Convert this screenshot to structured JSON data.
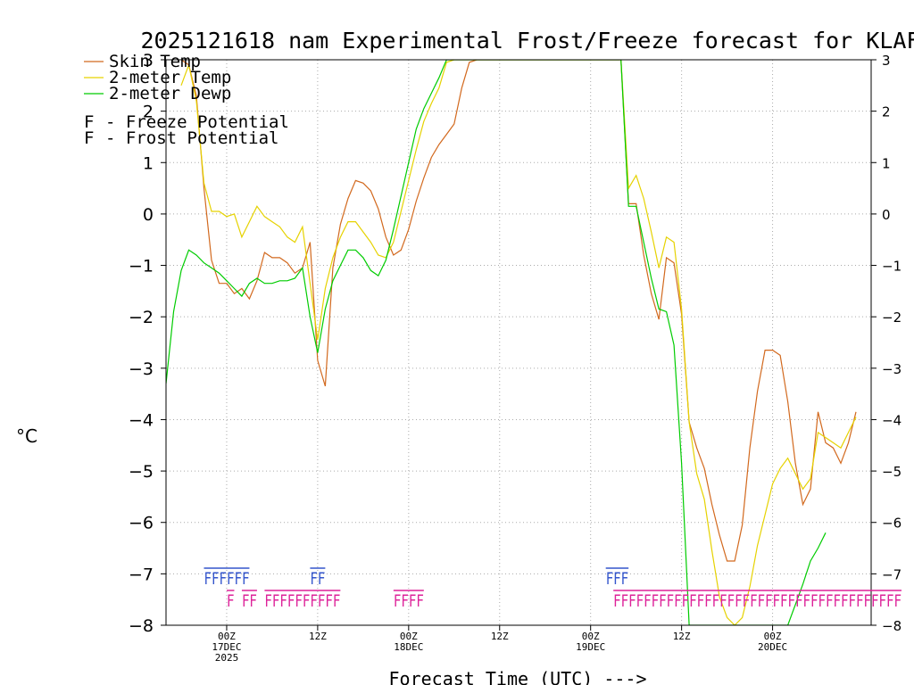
{
  "chart_data": {
    "type": "line",
    "title": "2025121618 nam Experimental Frost/Freeze forecast for KLAF",
    "ylabel": "°C",
    "xlabel": "Forecast Time (UTC) --->",
    "ylim": [
      -8,
      3
    ],
    "xlim_hours": [
      -8,
      85
    ],
    "y_ticks": [
      3,
      2,
      1,
      0,
      -1,
      -2,
      -3,
      -4,
      -5,
      -6,
      -7,
      -8
    ],
    "x_ticks": [
      {
        "hour": 0,
        "labels": [
          "00Z",
          "17DEC",
          "2025"
        ]
      },
      {
        "hour": 12,
        "labels": [
          "12Z"
        ]
      },
      {
        "hour": 24,
        "labels": [
          "00Z",
          "18DEC"
        ]
      },
      {
        "hour": 36,
        "labels": [
          "12Z"
        ]
      },
      {
        "hour": 48,
        "labels": [
          "00Z",
          "19DEC"
        ]
      },
      {
        "hour": 60,
        "labels": [
          "12Z"
        ]
      },
      {
        "hour": 72,
        "labels": [
          "00Z",
          "20DEC"
        ]
      }
    ],
    "grid": true,
    "legend_position": "top-left",
    "series": [
      {
        "name": "Skin Temp",
        "color": "#d2691e",
        "points": [
          [
            -6,
            3.0
          ],
          [
            -5,
            2.9
          ],
          [
            -4,
            2.3
          ],
          [
            -3,
            0.5
          ],
          [
            -2,
            -0.9
          ],
          [
            -1,
            -1.35
          ],
          [
            0,
            -1.35
          ],
          [
            1,
            -1.55
          ],
          [
            2,
            -1.45
          ],
          [
            3,
            -1.65
          ],
          [
            4,
            -1.3
          ],
          [
            5,
            -0.75
          ],
          [
            6,
            -0.85
          ],
          [
            7,
            -0.85
          ],
          [
            8,
            -0.95
          ],
          [
            9,
            -1.15
          ],
          [
            10,
            -1.05
          ],
          [
            11,
            -0.55
          ],
          [
            12,
            -2.85
          ],
          [
            13,
            -3.35
          ],
          [
            14,
            -1.05
          ],
          [
            15,
            -0.2
          ],
          [
            16,
            0.3
          ],
          [
            17,
            0.65
          ],
          [
            18,
            0.6
          ],
          [
            19,
            0.45
          ],
          [
            20,
            0.1
          ],
          [
            21,
            -0.45
          ],
          [
            22,
            -0.8
          ],
          [
            23,
            -0.7
          ],
          [
            24,
            -0.3
          ],
          [
            25,
            0.25
          ],
          [
            26,
            0.7
          ],
          [
            27,
            1.1
          ],
          [
            28,
            1.35
          ],
          [
            29,
            1.55
          ],
          [
            30,
            1.75
          ],
          [
            31,
            2.45
          ],
          [
            32,
            2.95
          ],
          [
            33,
            3.0
          ],
          [
            52,
            3.0
          ],
          [
            53,
            0.2
          ],
          [
            54,
            0.2
          ],
          [
            55,
            -0.8
          ],
          [
            56,
            -1.55
          ],
          [
            57,
            -2.05
          ],
          [
            58,
            -0.85
          ],
          [
            59,
            -0.95
          ],
          [
            60,
            -1.95
          ],
          [
            61,
            -4.05
          ],
          [
            62,
            -4.55
          ],
          [
            63,
            -4.95
          ],
          [
            64,
            -5.65
          ],
          [
            65,
            -6.25
          ],
          [
            66,
            -6.75
          ],
          [
            67,
            -6.75
          ],
          [
            68,
            -6.05
          ],
          [
            69,
            -4.55
          ],
          [
            70,
            -3.45
          ],
          [
            71,
            -2.65
          ],
          [
            72,
            -2.65
          ],
          [
            73,
            -2.75
          ],
          [
            74,
            -3.65
          ],
          [
            75,
            -4.85
          ],
          [
            76,
            -5.65
          ],
          [
            77,
            -5.35
          ],
          [
            78,
            -3.85
          ],
          [
            79,
            -4.45
          ],
          [
            80,
            -4.55
          ],
          [
            81,
            -4.85
          ],
          [
            82,
            -4.45
          ],
          [
            83,
            -3.85
          ]
        ]
      },
      {
        "name": "2-meter Temp",
        "color": "#e6d200",
        "points": [
          [
            -6,
            2.5
          ],
          [
            -5,
            2.9
          ],
          [
            -4,
            2.2
          ],
          [
            -3,
            0.6
          ],
          [
            -2,
            0.05
          ],
          [
            -1,
            0.05
          ],
          [
            0,
            -0.05
          ],
          [
            1,
            0.0
          ],
          [
            2,
            -0.45
          ],
          [
            3,
            -0.15
          ],
          [
            4,
            0.15
          ],
          [
            5,
            -0.05
          ],
          [
            6,
            -0.15
          ],
          [
            7,
            -0.25
          ],
          [
            8,
            -0.45
          ],
          [
            9,
            -0.55
          ],
          [
            10,
            -0.25
          ],
          [
            11,
            -1.35
          ],
          [
            12,
            -2.45
          ],
          [
            13,
            -1.45
          ],
          [
            14,
            -0.85
          ],
          [
            15,
            -0.45
          ],
          [
            16,
            -0.15
          ],
          [
            17,
            -0.15
          ],
          [
            18,
            -0.35
          ],
          [
            19,
            -0.55
          ],
          [
            20,
            -0.8
          ],
          [
            21,
            -0.85
          ],
          [
            22,
            -0.55
          ],
          [
            23,
            0.05
          ],
          [
            24,
            0.65
          ],
          [
            25,
            1.25
          ],
          [
            26,
            1.8
          ],
          [
            27,
            2.15
          ],
          [
            28,
            2.45
          ],
          [
            29,
            2.95
          ],
          [
            30,
            3.0
          ],
          [
            52,
            3.0
          ],
          [
            53,
            0.5
          ],
          [
            54,
            0.75
          ],
          [
            55,
            0.3
          ],
          [
            56,
            -0.35
          ],
          [
            57,
            -1.05
          ],
          [
            58,
            -0.45
          ],
          [
            59,
            -0.55
          ],
          [
            60,
            -1.85
          ],
          [
            61,
            -4.05
          ],
          [
            62,
            -5.05
          ],
          [
            63,
            -5.55
          ],
          [
            64,
            -6.55
          ],
          [
            65,
            -7.45
          ],
          [
            66,
            -7.85
          ],
          [
            67,
            -8.05
          ],
          [
            68,
            -7.85
          ],
          [
            69,
            -7.25
          ],
          [
            70,
            -6.45
          ],
          [
            71,
            -5.85
          ],
          [
            72,
            -5.25
          ],
          [
            73,
            -4.95
          ],
          [
            74,
            -4.75
          ],
          [
            75,
            -5.05
          ],
          [
            76,
            -5.35
          ],
          [
            77,
            -5.15
          ],
          [
            78,
            -4.25
          ],
          [
            79,
            -4.35
          ],
          [
            80,
            -4.45
          ],
          [
            81,
            -4.55
          ],
          [
            82,
            -4.25
          ],
          [
            83,
            -3.95
          ]
        ]
      },
      {
        "name": "2-meter Dewp",
        "color": "#00cc00",
        "points": [
          [
            -8,
            -3.3
          ],
          [
            -7,
            -1.9
          ],
          [
            -6,
            -1.1
          ],
          [
            -5,
            -0.7
          ],
          [
            -4,
            -0.8
          ],
          [
            -3,
            -0.95
          ],
          [
            -2,
            -1.05
          ],
          [
            -1,
            -1.15
          ],
          [
            0,
            -1.3
          ],
          [
            1,
            -1.45
          ],
          [
            2,
            -1.6
          ],
          [
            3,
            -1.35
          ],
          [
            4,
            -1.25
          ],
          [
            5,
            -1.35
          ],
          [
            6,
            -1.35
          ],
          [
            7,
            -1.3
          ],
          [
            8,
            -1.3
          ],
          [
            9,
            -1.25
          ],
          [
            10,
            -1.05
          ],
          [
            11,
            -2.0
          ],
          [
            12,
            -2.7
          ],
          [
            13,
            -1.85
          ],
          [
            14,
            -1.3
          ],
          [
            15,
            -1.0
          ],
          [
            16,
            -0.7
          ],
          [
            17,
            -0.7
          ],
          [
            18,
            -0.85
          ],
          [
            19,
            -1.1
          ],
          [
            20,
            -1.2
          ],
          [
            21,
            -0.9
          ],
          [
            22,
            -0.3
          ],
          [
            23,
            0.35
          ],
          [
            24,
            1.0
          ],
          [
            25,
            1.65
          ],
          [
            26,
            2.05
          ],
          [
            27,
            2.35
          ],
          [
            28,
            2.65
          ],
          [
            29,
            3.0
          ],
          [
            52,
            3.0
          ],
          [
            53,
            0.15
          ],
          [
            54,
            0.15
          ],
          [
            55,
            -0.55
          ],
          [
            56,
            -1.25
          ],
          [
            57,
            -1.85
          ],
          [
            58,
            -1.9
          ],
          [
            59,
            -2.55
          ],
          [
            60,
            -4.85
          ],
          [
            61,
            -8.0
          ],
          [
            74,
            -8.0
          ],
          [
            75,
            -7.6
          ],
          [
            76,
            -7.2
          ],
          [
            77,
            -6.75
          ],
          [
            78,
            -6.5
          ],
          [
            79,
            -6.2
          ]
        ]
      }
    ],
    "flag_rows": {
      "frost": [
        {
          "label": "FFFFFF",
          "start_hour": -3
        },
        {
          "label": "FF",
          "start_hour": 11
        },
        {
          "label": "FFF",
          "start_hour": 50
        }
      ],
      "freeze": [
        {
          "label": "F",
          "start_hour": 0
        },
        {
          "label": "FF",
          "start_hour": 2
        },
        {
          "label": "FFFFFFFFFF",
          "start_hour": 5
        },
        {
          "label": "FFFF",
          "start_hour": 22
        },
        {
          "label": "FFFFFFFFFFFFFFFFFFFFFFFFFFFFFFFFFFFFFF",
          "start_hour": 51
        }
      ]
    },
    "legend": {
      "series_labels": [
        "Skin Temp",
        "2-meter Temp",
        "2-meter Dewp"
      ],
      "flag_symbol": "F",
      "flag_labels": [
        "- Freeze Potential",
        "- Frost Potential"
      ],
      "freeze_color": "#dd2299",
      "frost_color": "#3355cc"
    }
  }
}
